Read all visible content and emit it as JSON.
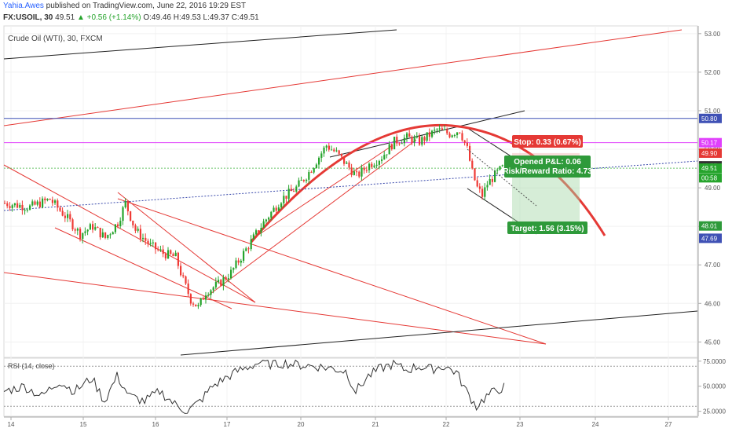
{
  "header": {
    "author": "Yahia.Awes",
    "published": "published on TradingView.com, June 22, 2016 19:29 EST",
    "symbol": "FX:USOIL, 30",
    "last": "49.51",
    "change": "▲ +0.56 (+1.14%)",
    "o": "O:49.46",
    "h": "H:49.53",
    "l": "L:49.37",
    "c": "C:49.51"
  },
  "chart_title": "Crude Oil (WTI), 30, FXCM",
  "rsi_label": "RSI (14, close)",
  "colors": {
    "up": "#26a42c",
    "down": "#ef3a35",
    "drawing": "#e53935",
    "blue_level": "#3f51b5",
    "magenta_level": "#e040fb",
    "target": "#2e9a3a",
    "stop": "#e53935"
  },
  "chart_data": {
    "type": "candlestick",
    "ylim": [
      44.6,
      53.2
    ],
    "y_ticks": [
      "53.00",
      "52.00",
      "51.00",
      "50.00",
      "49.00",
      "48.00",
      "47.00",
      "46.00",
      "45.00"
    ],
    "x_ticks": [
      "14",
      "15",
      "16",
      "17",
      "20",
      "21",
      "22",
      "23",
      "24",
      "27"
    ],
    "rsi": {
      "ylim": [
        20,
        78
      ],
      "ticks": [
        "75.0000",
        "50.0000",
        "25.0000"
      ]
    },
    "price_path": [
      [
        0,
        48.6
      ],
      [
        10,
        48.5
      ],
      [
        18,
        48.7
      ],
      [
        25,
        48.2
      ],
      [
        30,
        47.8
      ],
      [
        35,
        48.0
      ],
      [
        40,
        47.7
      ],
      [
        45,
        48.1
      ],
      [
        48,
        48.6
      ],
      [
        52,
        47.9
      ],
      [
        58,
        47.5
      ],
      [
        63,
        47.3
      ],
      [
        68,
        47.2
      ],
      [
        71,
        46.6
      ],
      [
        74,
        46.1
      ],
      [
        77,
        45.9
      ],
      [
        80,
        46.3
      ],
      [
        85,
        46.5
      ],
      [
        90,
        46.8
      ],
      [
        94,
        47.2
      ],
      [
        98,
        47.6
      ],
      [
        103,
        48.1
      ],
      [
        110,
        48.7
      ],
      [
        116,
        49.0
      ],
      [
        121,
        49.4
      ],
      [
        125,
        49.8
      ],
      [
        128,
        50.1
      ],
      [
        132,
        49.9
      ],
      [
        136,
        49.6
      ],
      [
        140,
        49.3
      ],
      [
        145,
        49.6
      ],
      [
        150,
        49.8
      ],
      [
        155,
        50.2
      ],
      [
        160,
        50.3
      ],
      [
        165,
        50.2
      ],
      [
        172,
        50.5
      ],
      [
        177,
        50.4
      ],
      [
        181,
        50.5
      ],
      [
        184,
        50.0
      ],
      [
        186,
        49.4
      ],
      [
        188,
        49.0
      ],
      [
        190,
        48.8
      ],
      [
        192,
        49.1
      ],
      [
        196,
        49.4
      ],
      [
        198,
        49.51
      ]
    ],
    "rsi_path": [
      [
        0,
        45
      ],
      [
        8,
        50
      ],
      [
        15,
        40
      ],
      [
        22,
        55
      ],
      [
        28,
        45
      ],
      [
        35,
        58
      ],
      [
        40,
        35
      ],
      [
        45,
        60
      ],
      [
        50,
        40
      ],
      [
        56,
        35
      ],
      [
        62,
        45
      ],
      [
        68,
        32
      ],
      [
        73,
        25
      ],
      [
        78,
        35
      ],
      [
        83,
        50
      ],
      [
        88,
        58
      ],
      [
        93,
        65
      ],
      [
        98,
        70
      ],
      [
        102,
        74
      ],
      [
        106,
        72
      ],
      [
        112,
        73
      ],
      [
        118,
        71
      ],
      [
        124,
        70
      ],
      [
        130,
        68
      ],
      [
        136,
        65
      ],
      [
        140,
        45
      ],
      [
        145,
        60
      ],
      [
        150,
        68
      ],
      [
        155,
        72
      ],
      [
        160,
        66
      ],
      [
        165,
        70
      ],
      [
        170,
        67
      ],
      [
        175,
        70
      ],
      [
        180,
        64
      ],
      [
        184,
        45
      ],
      [
        188,
        30
      ],
      [
        192,
        40
      ],
      [
        196,
        46
      ],
      [
        199,
        49
      ]
    ],
    "levels": [
      {
        "name": "blue",
        "value": 50.8
      },
      {
        "name": "magenta",
        "value": 50.17
      },
      {
        "name": "last",
        "value": 49.51
      }
    ],
    "price_labels": [
      {
        "text": "50.80",
        "value": 50.8,
        "color": "#3f51b5"
      },
      {
        "text": "50.17",
        "value": 50.17,
        "color": "#e040fb"
      },
      {
        "text": "49.90",
        "value": 49.9,
        "color": "#e53935"
      },
      {
        "text": "49.57",
        "value": 49.57,
        "color": "#333333"
      },
      {
        "text": "49.51",
        "value": 49.51,
        "color": "#26a42c"
      },
      {
        "text": "00:58",
        "value": 49.26,
        "color": "#26a42c"
      },
      {
        "text": "48.01",
        "value": 48.01,
        "color": "#2e9a3a"
      },
      {
        "text": "47.69",
        "value": 47.69,
        "color": "#3f51b5"
      }
    ],
    "position": {
      "stop_label": "Stop: 0.33 (0.67%)",
      "pnl_label": "Opened P&L: 0.06",
      "rr_label": "Risk/Reward Ratio: 4.73",
      "target_label": "Target: 1.56 (3.15%)",
      "entry": 49.57,
      "stop": 49.9,
      "target": 48.01
    }
  }
}
